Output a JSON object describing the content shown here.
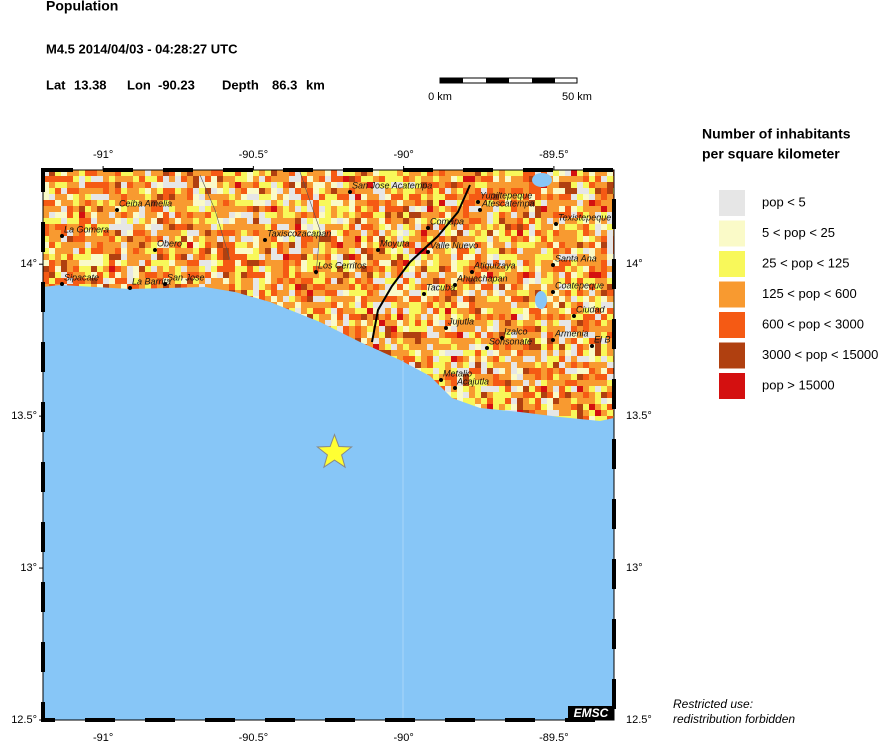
{
  "header": {
    "title": "Population",
    "event": "M4.5  2014/04/03 - 04:28:27 UTC",
    "lat_label": "Lat",
    "lat": 13.38,
    "lon_label": "Lon",
    "lon": -90.23,
    "depth_label": "Depth",
    "depth": 86.3,
    "depth_unit": "km"
  },
  "scale_bar": {
    "start": "0 km",
    "end": "50 km"
  },
  "map": {
    "lon_range": [
      -91.2,
      -89.3
    ],
    "lat_range": [
      12.5,
      14.31
    ],
    "lon_ticks": [
      {
        "value": -91,
        "label": "-91°"
      },
      {
        "value": -90.5,
        "label": "-90.5°"
      },
      {
        "value": -90,
        "label": "-90°"
      },
      {
        "value": -89.5,
        "label": "-89.5°"
      }
    ],
    "lat_ticks": [
      {
        "value": 14,
        "label": "14°"
      },
      {
        "value": 13.5,
        "label": "13.5°"
      },
      {
        "value": 13,
        "label": "13°"
      },
      {
        "value": 12.5,
        "label": "12.5°"
      }
    ],
    "cities": [
      "Ceiba Amelia",
      "La Gomera",
      "Obero",
      "Taxiscozacapan",
      "Sipacate",
      "La Barrita",
      "San Jose",
      "Los Cerritos",
      "Moyuta",
      "San Jose Acatempa",
      "Comapa",
      "Valle Nuevo",
      "Yupiltepeque",
      "Atescatempa",
      "Texistepeque",
      "Santa Ana",
      "Atiquizaya",
      "Ahuachapan",
      "Tacuba",
      "Coatepeque",
      "Ciudad",
      "Jujutla",
      "Izalco",
      "Sonsonate",
      "Armenia",
      "El B",
      "Metalio",
      "Acajutla"
    ]
  },
  "legend": {
    "title_lines": [
      "Number of inhabitants",
      "per square kilometer"
    ],
    "items": [
      {
        "label": "pop < 5",
        "color": "#e6e6e6"
      },
      {
        "label": "5 < pop < 25",
        "color": "#fafac8"
      },
      {
        "label": "25 < pop < 125",
        "color": "#f8f85a"
      },
      {
        "label": "125 < pop < 600",
        "color": "#f89a30"
      },
      {
        "label": "600 < pop < 3000",
        "color": "#f55a14"
      },
      {
        "label": "3000 < pop < 15000",
        "color": "#b04010"
      },
      {
        "label": "pop > 15000",
        "color": "#d41010"
      }
    ]
  },
  "footer": {
    "badge": "EMSC",
    "note_lines": [
      "Restricted use:",
      "redistribution forbidden"
    ]
  }
}
